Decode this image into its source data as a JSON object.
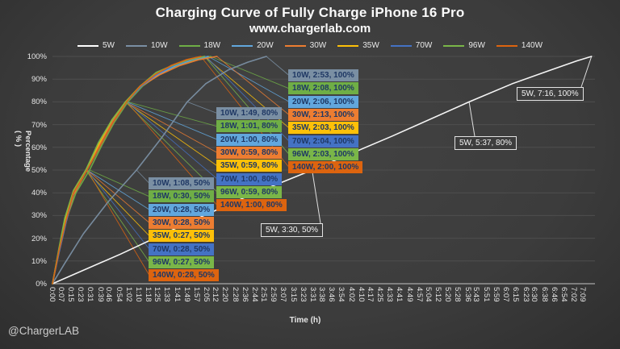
{
  "header": {
    "title": "Charging Curve of Fully Charge iPhone 16 Pro",
    "subtitle": "www.chargerlab.com"
  },
  "watermark": "@ChargerLAB",
  "axes": {
    "x_label": "Time  (h)",
    "y_label_line1": "Percentage",
    "y_label_line2": "( % )"
  },
  "colors": {
    "background": "#3d3d3d",
    "grid": "#4e4e4e",
    "axis_line": "#a8a8a8",
    "tick_text": "#e6e6e6",
    "box_text": "#1f3864",
    "callout_white": "#e8e8e8"
  },
  "chart_data": {
    "type": "line",
    "title": "Charging Curve of Fully Charge iPhone 16 Pro",
    "xlabel": "Time (h)",
    "ylabel": "Percentage ( % )",
    "ylim": [
      0,
      100
    ],
    "legend_position": "top",
    "grid": "horizontal",
    "y_ticks": [
      "0%",
      "10%",
      "20%",
      "30%",
      "40%",
      "50%",
      "60%",
      "70%",
      "80%",
      "90%",
      "100%"
    ],
    "x_ticks": [
      "0:00",
      "0:07",
      "0:15",
      "0:23",
      "0:31",
      "0:39",
      "0:46",
      "0:54",
      "1:02",
      "1:10",
      "1:18",
      "1:25",
      "1:33",
      "1:41",
      "1:49",
      "1:57",
      "2:05",
      "2:12",
      "2:20",
      "2:28",
      "2:36",
      "2:44",
      "2:51",
      "2:59",
      "3:07",
      "3:15",
      "3:23",
      "3:31",
      "3:38",
      "3:46",
      "3:54",
      "4:02",
      "4:10",
      "4:17",
      "4:25",
      "4:33",
      "4:41",
      "4:49",
      "4:57",
      "5:04",
      "5:12",
      "5:20",
      "5:28",
      "5:36",
      "5:43",
      "5:51",
      "5:59",
      "6:07",
      "6:15",
      "6:23",
      "6:30",
      "6:38",
      "6:46",
      "6:54",
      "7:02",
      "7:09"
    ],
    "series": [
      {
        "name": "5W",
        "color": "#ffffff",
        "points": [
          [
            0,
            0
          ],
          [
            55,
            13
          ],
          [
            110,
            27
          ],
          [
            160,
            39
          ],
          [
            210,
            50
          ],
          [
            275,
            65
          ],
          [
            337,
            80
          ],
          [
            372,
            88
          ],
          [
            403,
            94
          ],
          [
            424,
            98
          ],
          [
            436,
            100
          ]
        ],
        "milestones": [
          {
            "time": "3:30",
            "pct": 50,
            "label": "5W, 3:30, 50%"
          },
          {
            "time": "5:37",
            "pct": 80,
            "label": "5W, 5:37, 80%"
          },
          {
            "time": "7:16",
            "pct": 100,
            "label": "5W, 7:16, 100%"
          }
        ]
      },
      {
        "name": "10W",
        "color": "#7a8fa3",
        "points": [
          [
            0,
            0
          ],
          [
            10,
            9
          ],
          [
            25,
            22
          ],
          [
            45,
            36
          ],
          [
            68,
            50
          ],
          [
            88,
            64
          ],
          [
            109,
            80
          ],
          [
            124,
            88
          ],
          [
            142,
            94
          ],
          [
            158,
            97.5
          ],
          [
            173,
            100
          ]
        ],
        "milestones": [
          {
            "time": "1:08",
            "pct": 50,
            "label": "10W, 1:08, 50%"
          },
          {
            "time": "1:49",
            "pct": 80,
            "label": "10W, 1:49, 80%"
          },
          {
            "time": "2:53",
            "pct": 100,
            "label": "10W, 2:53, 100%"
          }
        ]
      },
      {
        "name": "18W",
        "color": "#6fae46",
        "points": [
          [
            0,
            0
          ],
          [
            5,
            14
          ],
          [
            11,
            28
          ],
          [
            19,
            40
          ],
          [
            30,
            50
          ],
          [
            40,
            61
          ],
          [
            50,
            71
          ],
          [
            61,
            80
          ],
          [
            73,
            87
          ],
          [
            86,
            92
          ],
          [
            101,
            96
          ],
          [
            115,
            98.5
          ],
          [
            128,
            100
          ]
        ],
        "milestones": [
          {
            "time": "0:30",
            "pct": 50,
            "label": "18W, 0:30, 50%"
          },
          {
            "time": "1:01",
            "pct": 80,
            "label": "18W, 1:01, 80%"
          },
          {
            "time": "2:08",
            "pct": 100,
            "label": "18W, 2:08, 100%"
          }
        ]
      },
      {
        "name": "20W",
        "color": "#62a7dd",
        "points": [
          [
            0,
            0
          ],
          [
            5,
            14
          ],
          [
            11,
            28
          ],
          [
            17,
            40
          ],
          [
            28,
            50
          ],
          [
            39,
            61
          ],
          [
            49,
            71
          ],
          [
            60,
            80
          ],
          [
            72,
            87
          ],
          [
            85,
            92
          ],
          [
            100,
            96
          ],
          [
            113,
            98.5
          ],
          [
            126,
            100
          ]
        ],
        "milestones": [
          {
            "time": "0:28",
            "pct": 50,
            "label": "20W, 0:28, 50%"
          },
          {
            "time": "1:00",
            "pct": 80,
            "label": "20W, 1:00, 80%"
          },
          {
            "time": "2:06",
            "pct": 100,
            "label": "20W, 2:06, 100%"
          }
        ]
      },
      {
        "name": "30W",
        "color": "#ed7d31",
        "points": [
          [
            0,
            0
          ],
          [
            5,
            13
          ],
          [
            11,
            27
          ],
          [
            17,
            39
          ],
          [
            28,
            50
          ],
          [
            38,
            61
          ],
          [
            48,
            71
          ],
          [
            59,
            80
          ],
          [
            72,
            87
          ],
          [
            87,
            92
          ],
          [
            103,
            96
          ],
          [
            118,
            98.5
          ],
          [
            133,
            100
          ]
        ],
        "milestones": [
          {
            "time": "0:28",
            "pct": 50,
            "label": "30W, 0:28, 50%"
          },
          {
            "time": "0:59",
            "pct": 80,
            "label": "30W, 0:59, 80%"
          },
          {
            "time": "2:13",
            "pct": 100,
            "label": "30W, 2:13, 100%"
          }
        ]
      },
      {
        "name": "35W",
        "color": "#fdc008",
        "points": [
          [
            0,
            0
          ],
          [
            5,
            14
          ],
          [
            10,
            28
          ],
          [
            17,
            41
          ],
          [
            27,
            50
          ],
          [
            38,
            62
          ],
          [
            48,
            72
          ],
          [
            59,
            80
          ],
          [
            71,
            87
          ],
          [
            83,
            92
          ],
          [
            97,
            96
          ],
          [
            110,
            98.5
          ],
          [
            123,
            100
          ]
        ],
        "milestones": [
          {
            "time": "0:27",
            "pct": 50,
            "label": "35W, 0:27, 50%"
          },
          {
            "time": "0:59",
            "pct": 80,
            "label": "35W, 0:59, 80%"
          },
          {
            "time": "2:03",
            "pct": 100,
            "label": "35W, 2:03, 100%"
          }
        ]
      },
      {
        "name": "70W",
        "color": "#4472c4",
        "points": [
          [
            0,
            0
          ],
          [
            5,
            13
          ],
          [
            11,
            27
          ],
          [
            17,
            40
          ],
          [
            28,
            50
          ],
          [
            39,
            61
          ],
          [
            49,
            71
          ],
          [
            60,
            80
          ],
          [
            72,
            87
          ],
          [
            84,
            92
          ],
          [
            98,
            96
          ],
          [
            111,
            98.5
          ],
          [
            124,
            100
          ]
        ],
        "milestones": [
          {
            "time": "0:28",
            "pct": 50,
            "label": "70W, 0:28, 50%"
          },
          {
            "time": "1:00",
            "pct": 80,
            "label": "70W, 1:00, 80%"
          },
          {
            "time": "2:04",
            "pct": 100,
            "label": "70W, 2:04, 100%"
          }
        ]
      },
      {
        "name": "96W",
        "color": "#7ab648",
        "points": [
          [
            0,
            0
          ],
          [
            5,
            15
          ],
          [
            10,
            29
          ],
          [
            17,
            41
          ],
          [
            27,
            50
          ],
          [
            37,
            62
          ],
          [
            48,
            72
          ],
          [
            59,
            80
          ],
          [
            71,
            87
          ],
          [
            84,
            93
          ],
          [
            97,
            96
          ],
          [
            110,
            98.5
          ],
          [
            123,
            100
          ]
        ],
        "milestones": [
          {
            "time": "0:27",
            "pct": 50,
            "label": "96W, 0:27, 50%"
          },
          {
            "time": "0:59",
            "pct": 80,
            "label": "96W, 0:59, 80%"
          },
          {
            "time": "2:03",
            "pct": 100,
            "label": "96W, 2:03, 100%"
          }
        ]
      },
      {
        "name": "140W",
        "color": "#dd640f",
        "points": [
          [
            0,
            0
          ],
          [
            5,
            14
          ],
          [
            11,
            28
          ],
          [
            17,
            40
          ],
          [
            28,
            50
          ],
          [
            39,
            61
          ],
          [
            49,
            71
          ],
          [
            60,
            80
          ],
          [
            71,
            87
          ],
          [
            83,
            92
          ],
          [
            96,
            96
          ],
          [
            108,
            98.5
          ],
          [
            120,
            100
          ]
        ],
        "milestones": [
          {
            "time": "0:28",
            "pct": 50,
            "label": "140W, 0:28, 50%"
          },
          {
            "time": "1:00",
            "pct": 80,
            "label": "140W, 1:00, 80%"
          },
          {
            "time": "2:00",
            "pct": 100,
            "label": "140W, 2:00, 100%"
          }
        ]
      }
    ]
  }
}
